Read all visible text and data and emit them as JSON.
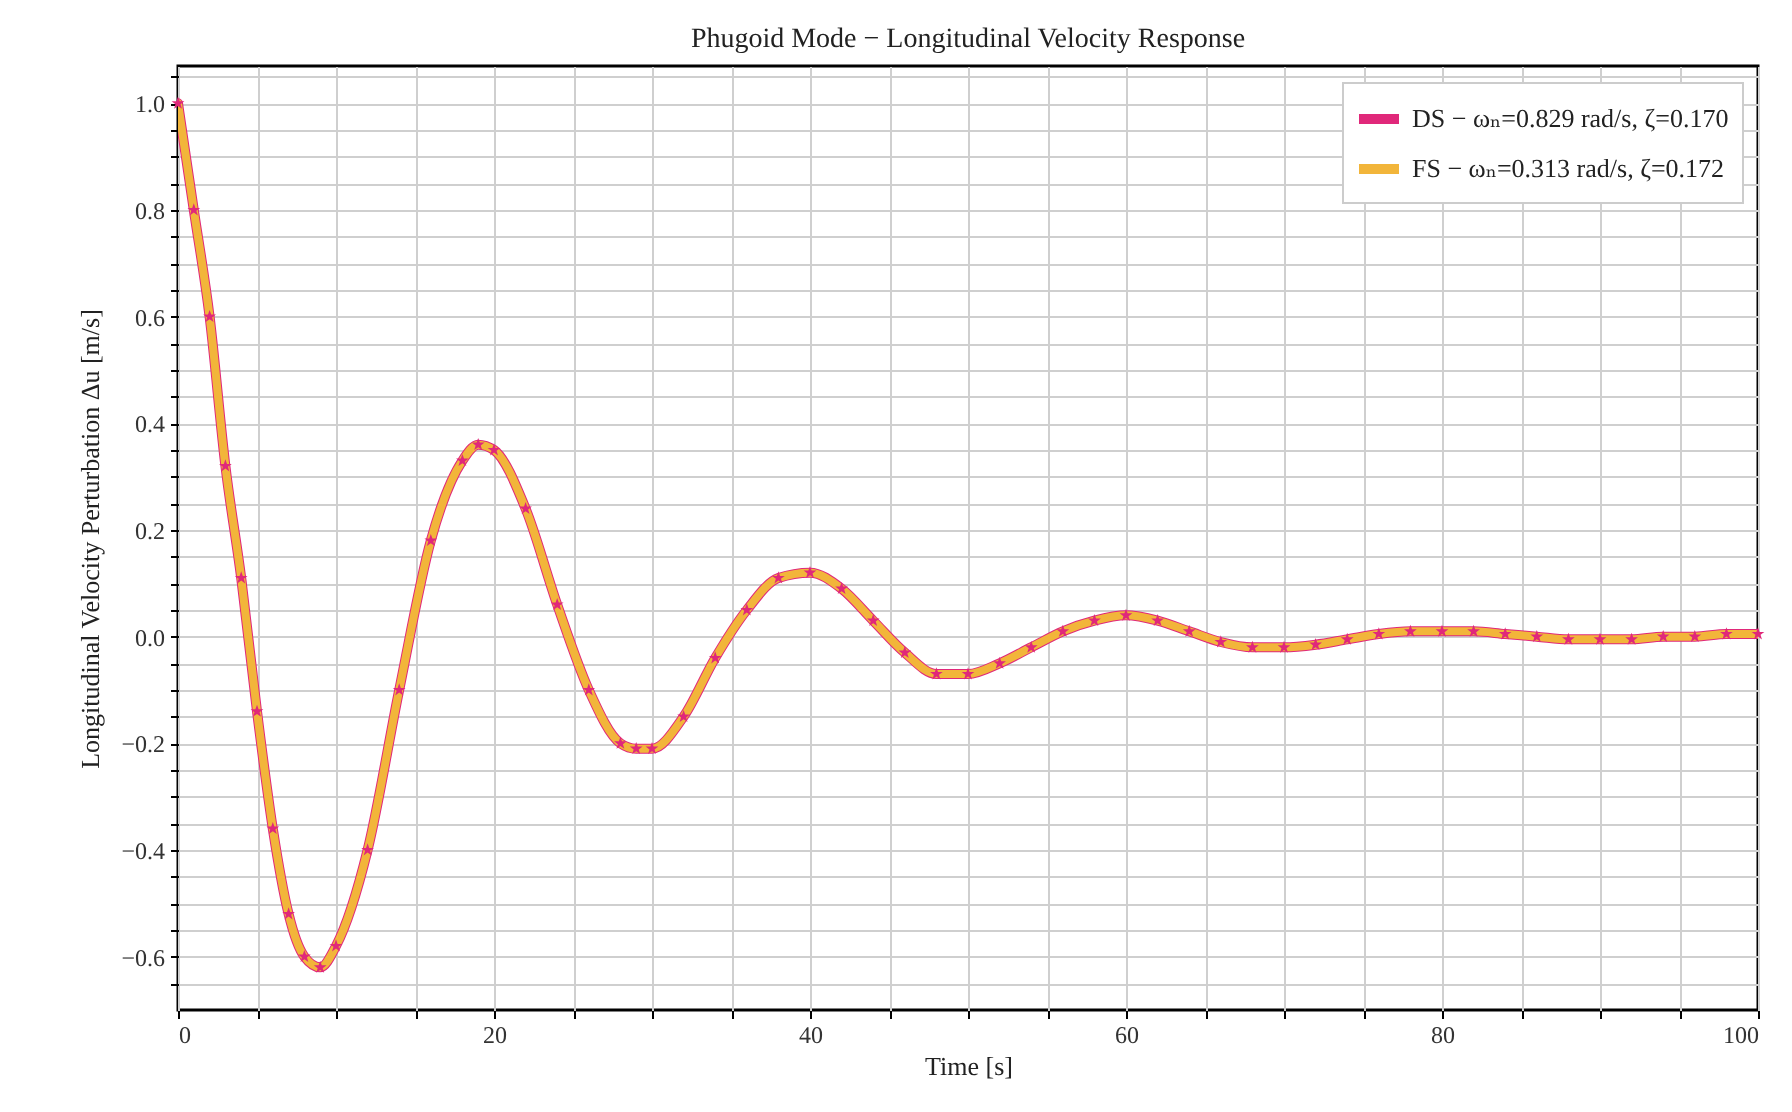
{
  "chart_data": {
    "type": "line",
    "title": "Phugoid Mode − Longitudinal Velocity Response",
    "xlabel": "Time [s]",
    "ylabel": "Longitudinal Velocity Perturbation Δu [m/s]",
    "x": [
      0,
      1,
      2,
      3,
      4,
      5,
      6,
      7,
      8,
      9,
      10,
      12,
      14,
      16,
      18,
      19,
      20,
      22,
      24,
      26,
      28,
      29,
      30,
      32,
      34,
      36,
      38,
      40,
      42,
      44,
      46,
      48,
      50,
      52,
      54,
      56,
      58,
      60,
      62,
      64,
      66,
      68,
      70,
      72,
      74,
      76,
      78,
      80,
      82,
      84,
      86,
      88,
      90,
      92,
      94,
      96,
      98,
      100
    ],
    "series": [
      {
        "name": "DS − ωₙ=0.829 rad/s, ζ=0.170",
        "color": "#e0287a",
        "marker": "star",
        "values": [
          1.0,
          0.8,
          0.6,
          0.32,
          0.11,
          -0.14,
          -0.36,
          -0.52,
          -0.6,
          -0.62,
          -0.58,
          -0.4,
          -0.1,
          0.18,
          0.33,
          0.36,
          0.35,
          0.24,
          0.06,
          -0.1,
          -0.2,
          -0.21,
          -0.21,
          -0.15,
          -0.04,
          0.05,
          0.11,
          0.12,
          0.09,
          0.03,
          -0.03,
          -0.07,
          -0.07,
          -0.05,
          -0.02,
          0.01,
          0.03,
          0.04,
          0.03,
          0.01,
          -0.01,
          -0.02,
          -0.02,
          -0.015,
          -0.005,
          0.005,
          0.01,
          0.01,
          0.01,
          0.005,
          0.0,
          -0.005,
          -0.005,
          -0.005,
          0.0,
          0.0,
          0.005,
          0.005
        ]
      },
      {
        "name": "FS − ωₙ=0.313 rad/s, ζ=0.172",
        "color": "#f2b53a",
        "marker": "none",
        "values": [
          1.0,
          0.8,
          0.6,
          0.32,
          0.11,
          -0.14,
          -0.36,
          -0.52,
          -0.6,
          -0.62,
          -0.58,
          -0.4,
          -0.1,
          0.18,
          0.33,
          0.36,
          0.35,
          0.24,
          0.06,
          -0.1,
          -0.2,
          -0.21,
          -0.21,
          -0.15,
          -0.04,
          0.05,
          0.11,
          0.12,
          0.09,
          0.03,
          -0.03,
          -0.07,
          -0.07,
          -0.05,
          -0.02,
          0.01,
          0.03,
          0.04,
          0.03,
          0.01,
          -0.01,
          -0.02,
          -0.02,
          -0.015,
          -0.005,
          0.005,
          0.01,
          0.01,
          0.01,
          0.005,
          0.0,
          -0.005,
          -0.005,
          -0.005,
          0.0,
          0.0,
          0.005,
          0.005
        ]
      }
    ],
    "xlim": [
      0,
      100
    ],
    "ylim": [
      -0.7,
      1.07
    ],
    "xticks": [
      0,
      {
        "value": 5,
        "label": null
      },
      {
        "value": 10,
        "label": null
      },
      {
        "value": 15,
        "label": null
      },
      20,
      {
        "value": 25,
        "label": null
      },
      {
        "value": 30,
        "label": null
      },
      {
        "value": 35,
        "label": null
      },
      40,
      {
        "value": 45,
        "label": null
      },
      {
        "value": 50,
        "label": null
      },
      {
        "value": 55,
        "label": null
      },
      60,
      {
        "value": 65,
        "label": null
      },
      {
        "value": 70,
        "label": null
      },
      {
        "value": 75,
        "label": null
      },
      80,
      {
        "value": 85,
        "label": null
      },
      {
        "value": 90,
        "label": null
      },
      {
        "value": 95,
        "label": null
      },
      100
    ],
    "yticks": [
      {
        "value": -0.65,
        "label": null
      },
      {
        "value": -0.6,
        "label": "−0.6"
      },
      {
        "value": -0.55,
        "label": null
      },
      {
        "value": -0.5,
        "label": null
      },
      {
        "value": -0.45,
        "label": null
      },
      {
        "value": -0.4,
        "label": "−0.4"
      },
      {
        "value": -0.35,
        "label": null
      },
      {
        "value": -0.3,
        "label": null
      },
      {
        "value": -0.25,
        "label": null
      },
      {
        "value": -0.2,
        "label": "−0.2"
      },
      {
        "value": -0.15,
        "label": null
      },
      {
        "value": -0.1,
        "label": null
      },
      {
        "value": -0.05,
        "label": null
      },
      {
        "value": 0,
        "label": "0.0"
      },
      {
        "value": 0.05,
        "label": null
      },
      {
        "value": 0.1,
        "label": null
      },
      {
        "value": 0.15,
        "label": null
      },
      {
        "value": 0.2,
        "label": "0.2"
      },
      {
        "value": 0.25,
        "label": null
      },
      {
        "value": 0.3,
        "label": null
      },
      {
        "value": 0.35,
        "label": null
      },
      {
        "value": 0.4,
        "label": "0.4"
      },
      {
        "value": 0.45,
        "label": null
      },
      {
        "value": 0.5,
        "label": null
      },
      {
        "value": 0.55,
        "label": null
      },
      {
        "value": 0.6,
        "label": "0.6"
      },
      {
        "value": 0.65,
        "label": null
      },
      {
        "value": 0.7,
        "label": null
      },
      {
        "value": 0.75,
        "label": null
      },
      {
        "value": 0.8,
        "label": "0.8"
      },
      {
        "value": 0.85,
        "label": null
      },
      {
        "value": 0.9,
        "label": null
      },
      {
        "value": 0.95,
        "label": null
      },
      {
        "value": 1.0,
        "label": "1.0"
      },
      {
        "value": 1.05,
        "label": null
      }
    ],
    "grid": true,
    "legend": "top right",
    "line_style": "solid"
  }
}
